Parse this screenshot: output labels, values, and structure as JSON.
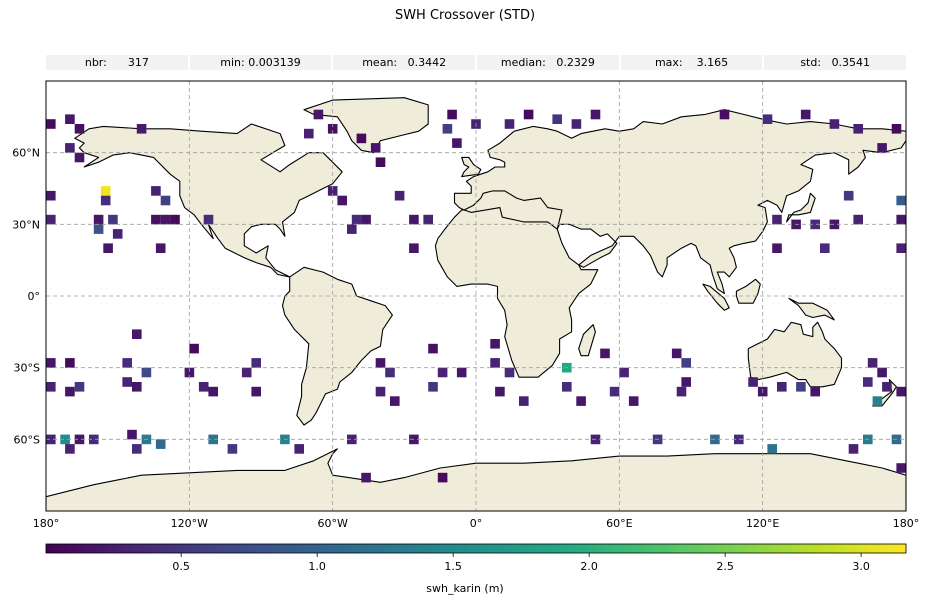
{
  "title": "SWH Crossover (STD)",
  "stats": [
    {
      "label": "nbr:",
      "value": "317"
    },
    {
      "label": "min:",
      "value": "0.003139"
    },
    {
      "label": "mean:",
      "value": "0.3442"
    },
    {
      "label": "median:",
      "value": "0.2329"
    },
    {
      "label": "max:",
      "value": "3.165"
    },
    {
      "label": "std:",
      "value": "0.3541"
    }
  ],
  "map": {
    "projection": "PlateCarree",
    "land_color": "#efedda",
    "coastline_color": "#000000",
    "gridlines": "dashed",
    "lon_ticks": [
      {
        "value": -180,
        "label": "180°"
      },
      {
        "value": -120,
        "label": "120°W"
      },
      {
        "value": -60,
        "label": "60°W"
      },
      {
        "value": 0,
        "label": "0°"
      },
      {
        "value": 60,
        "label": "60°E"
      },
      {
        "value": 120,
        "label": "120°E"
      },
      {
        "value": 180,
        "label": "180°"
      }
    ],
    "lat_ticks": [
      {
        "value": 60,
        "label": "60°N"
      },
      {
        "value": 30,
        "label": "30°N"
      },
      {
        "value": 0,
        "label": "0°"
      },
      {
        "value": -30,
        "label": "30°S"
      },
      {
        "value": -60,
        "label": "60°S"
      }
    ]
  },
  "colorbar": {
    "label": "swh_karin (m)",
    "colormap": "viridis",
    "min": 0.003139,
    "max": 3.165,
    "ticks": [
      {
        "value": 0.5,
        "label": "0.5"
      },
      {
        "value": 1.0,
        "label": "1.0"
      },
      {
        "value": 1.5,
        "label": "1.5"
      },
      {
        "value": 2.0,
        "label": "2.0"
      },
      {
        "value": 2.5,
        "label": "2.5"
      },
      {
        "value": 3.0,
        "label": "3.0"
      }
    ]
  },
  "chart_data": {
    "type": "heatmap",
    "cell_size_deg": 4,
    "cells_note": "lon, lat = cell centers (deg); v = SWH std (m)",
    "cells": [
      {
        "lon": -178,
        "lat": 72,
        "v": 0.1
      },
      {
        "lon": -170,
        "lat": 74,
        "v": 0.2
      },
      {
        "lon": -166,
        "lat": 70,
        "v": 0.15
      },
      {
        "lon": -170,
        "lat": 62,
        "v": 0.3
      },
      {
        "lon": -166,
        "lat": 58,
        "v": 0.2
      },
      {
        "lon": -140,
        "lat": 70,
        "v": 0.25
      },
      {
        "lon": -178,
        "lat": 42,
        "v": 0.2
      },
      {
        "lon": -178,
        "lat": 32,
        "v": 0.3
      },
      {
        "lon": -155,
        "lat": 44,
        "v": 3.1
      },
      {
        "lon": -155,
        "lat": 40,
        "v": 0.4
      },
      {
        "lon": -158,
        "lat": 32,
        "v": 0.2
      },
      {
        "lon": -152,
        "lat": 32,
        "v": 0.5
      },
      {
        "lon": -158,
        "lat": 28,
        "v": 0.8
      },
      {
        "lon": -150,
        "lat": 26,
        "v": 0.3
      },
      {
        "lon": -154,
        "lat": 20,
        "v": 0.2
      },
      {
        "lon": -134,
        "lat": 44,
        "v": 0.3
      },
      {
        "lon": -134,
        "lat": 32,
        "v": 0.15
      },
      {
        "lon": -130,
        "lat": 32,
        "v": 0.2
      },
      {
        "lon": -126,
        "lat": 32,
        "v": 0.1
      },
      {
        "lon": -130,
        "lat": 40,
        "v": 0.6
      },
      {
        "lon": -132,
        "lat": 20,
        "v": 0.2
      },
      {
        "lon": -112,
        "lat": 32,
        "v": 0.4
      },
      {
        "lon": -178,
        "lat": -28,
        "v": 0.2
      },
      {
        "lon": -178,
        "lat": -38,
        "v": 0.3
      },
      {
        "lon": -170,
        "lat": -28,
        "v": 0.1
      },
      {
        "lon": -170,
        "lat": -40,
        "v": 0.2
      },
      {
        "lon": -166,
        "lat": -38,
        "v": 0.5
      },
      {
        "lon": -142,
        "lat": -16,
        "v": 0.2
      },
      {
        "lon": -146,
        "lat": -28,
        "v": 0.4
      },
      {
        "lon": -146,
        "lat": -36,
        "v": 0.3
      },
      {
        "lon": -138,
        "lat": -32,
        "v": 0.7
      },
      {
        "lon": -142,
        "lat": -38,
        "v": 0.2
      },
      {
        "lon": -118,
        "lat": -22,
        "v": 0.1
      },
      {
        "lon": -120,
        "lat": -32,
        "v": 0.2
      },
      {
        "lon": -114,
        "lat": -38,
        "v": 0.3
      },
      {
        "lon": -110,
        "lat": -40,
        "v": 0.2
      },
      {
        "lon": -92,
        "lat": -28,
        "v": 0.4
      },
      {
        "lon": -96,
        "lat": -32,
        "v": 0.3
      },
      {
        "lon": -92,
        "lat": -40,
        "v": 0.2
      },
      {
        "lon": -178,
        "lat": -60,
        "v": 0.3
      },
      {
        "lon": -172,
        "lat": -60,
        "v": 1.5
      },
      {
        "lon": -166,
        "lat": -60,
        "v": 0.2
      },
      {
        "lon": -160,
        "lat": -60,
        "v": 0.4
      },
      {
        "lon": -170,
        "lat": -64,
        "v": 0.3
      },
      {
        "lon": -144,
        "lat": -58,
        "v": 0.2
      },
      {
        "lon": -138,
        "lat": -60,
        "v": 1.3
      },
      {
        "lon": -132,
        "lat": -62,
        "v": 1.1
      },
      {
        "lon": -142,
        "lat": -64,
        "v": 0.4
      },
      {
        "lon": -110,
        "lat": -60,
        "v": 1.2
      },
      {
        "lon": -102,
        "lat": -64,
        "v": 0.5
      },
      {
        "lon": -80,
        "lat": -60,
        "v": 1.4
      },
      {
        "lon": -74,
        "lat": -64,
        "v": 0.3
      },
      {
        "lon": -66,
        "lat": 76,
        "v": 0.2
      },
      {
        "lon": -70,
        "lat": 68,
        "v": 0.3
      },
      {
        "lon": -60,
        "lat": 70,
        "v": 0.15
      },
      {
        "lon": -48,
        "lat": 66,
        "v": 0.1
      },
      {
        "lon": -42,
        "lat": 62,
        "v": 0.2
      },
      {
        "lon": -40,
        "lat": 56,
        "v": 0.1
      },
      {
        "lon": -60,
        "lat": 44,
        "v": 0.3
      },
      {
        "lon": -56,
        "lat": 40,
        "v": 0.2
      },
      {
        "lon": -50,
        "lat": 32,
        "v": 0.4
      },
      {
        "lon": -52,
        "lat": 28,
        "v": 0.3
      },
      {
        "lon": -46,
        "lat": 32,
        "v": 0.2
      },
      {
        "lon": -32,
        "lat": 42,
        "v": 0.3
      },
      {
        "lon": -26,
        "lat": 32,
        "v": 0.2
      },
      {
        "lon": -20,
        "lat": 32,
        "v": 0.3
      },
      {
        "lon": -26,
        "lat": 20,
        "v": 0.2
      },
      {
        "lon": -12,
        "lat": 70,
        "v": 0.6
      },
      {
        "lon": -10,
        "lat": 76,
        "v": 0.1
      },
      {
        "lon": 0,
        "lat": 72,
        "v": 0.3
      },
      {
        "lon": -8,
        "lat": 64,
        "v": 0.2
      },
      {
        "lon": -40,
        "lat": -28,
        "v": 0.2
      },
      {
        "lon": -36,
        "lat": -32,
        "v": 0.4
      },
      {
        "lon": -40,
        "lat": -40,
        "v": 0.3
      },
      {
        "lon": -34,
        "lat": -44,
        "v": 0.2
      },
      {
        "lon": -18,
        "lat": -22,
        "v": 0.15
      },
      {
        "lon": -14,
        "lat": -32,
        "v": 0.3
      },
      {
        "lon": -6,
        "lat": -32,
        "v": 0.2
      },
      {
        "lon": -18,
        "lat": -38,
        "v": 0.5
      },
      {
        "lon": 8,
        "lat": -20,
        "v": 0.2
      },
      {
        "lon": 8,
        "lat": -28,
        "v": 0.3
      },
      {
        "lon": 14,
        "lat": -32,
        "v": 0.4
      },
      {
        "lon": 10,
        "lat": -40,
        "v": 0.2
      },
      {
        "lon": 20,
        "lat": -44,
        "v": 0.3
      },
      {
        "lon": 38,
        "lat": -30,
        "v": 1.9
      },
      {
        "lon": 38,
        "lat": -38,
        "v": 0.4
      },
      {
        "lon": 44,
        "lat": -44,
        "v": 0.2
      },
      {
        "lon": -52,
        "lat": -60,
        "v": 0.3
      },
      {
        "lon": -26,
        "lat": -60,
        "v": 0.2
      },
      {
        "lon": -14,
        "lat": -76,
        "v": 0.1
      },
      {
        "lon": -46,
        "lat": -76,
        "v": 0.2
      },
      {
        "lon": 14,
        "lat": 72,
        "v": 0.3
      },
      {
        "lon": 22,
        "lat": 76,
        "v": 0.1
      },
      {
        "lon": 34,
        "lat": 74,
        "v": 0.5
      },
      {
        "lon": 42,
        "lat": 72,
        "v": 0.3
      },
      {
        "lon": 50,
        "lat": 76,
        "v": 0.2
      },
      {
        "lon": 54,
        "lat": -24,
        "v": 0.2
      },
      {
        "lon": 62,
        "lat": -32,
        "v": 0.3
      },
      {
        "lon": 58,
        "lat": -40,
        "v": 0.4
      },
      {
        "lon": 66,
        "lat": -44,
        "v": 0.2
      },
      {
        "lon": 50,
        "lat": -60,
        "v": 0.3
      },
      {
        "lon": 76,
        "lat": -60,
        "v": 0.5
      },
      {
        "lon": 84,
        "lat": -24,
        "v": 0.2
      },
      {
        "lon": 88,
        "lat": -28,
        "v": 0.6
      },
      {
        "lon": 86,
        "lat": -40,
        "v": 0.3
      },
      {
        "lon": 88,
        "lat": -36,
        "v": 0.2
      },
      {
        "lon": 100,
        "lat": -60,
        "v": 1.1
      },
      {
        "lon": 110,
        "lat": -60,
        "v": 0.4
      },
      {
        "lon": 116,
        "lat": -36,
        "v": 0.3
      },
      {
        "lon": 120,
        "lat": -40,
        "v": 0.2
      },
      {
        "lon": 104,
        "lat": 76,
        "v": 0.15
      },
      {
        "lon": 138,
        "lat": 76,
        "v": 0.2
      },
      {
        "lon": 150,
        "lat": 72,
        "v": 0.3
      },
      {
        "lon": 122,
        "lat": 74,
        "v": 0.4
      },
      {
        "lon": 126,
        "lat": 32,
        "v": 0.3
      },
      {
        "lon": 134,
        "lat": 30,
        "v": 0.2
      },
      {
        "lon": 142,
        "lat": 30,
        "v": 0.4
      },
      {
        "lon": 150,
        "lat": 30,
        "v": 0.2
      },
      {
        "lon": 156,
        "lat": 42,
        "v": 0.5
      },
      {
        "lon": 160,
        "lat": 32,
        "v": 0.3
      },
      {
        "lon": 178,
        "lat": 40,
        "v": 0.9
      },
      {
        "lon": 178,
        "lat": 32,
        "v": 0.2
      },
      {
        "lon": 126,
        "lat": 20,
        "v": 0.2
      },
      {
        "lon": 146,
        "lat": 20,
        "v": 0.4
      },
      {
        "lon": 178,
        "lat": 20,
        "v": 0.3
      },
      {
        "lon": 176,
        "lat": 70,
        "v": 0.1
      },
      {
        "lon": 170,
        "lat": 62,
        "v": 0.2
      },
      {
        "lon": 160,
        "lat": 70,
        "v": 0.3
      },
      {
        "lon": 136,
        "lat": -38,
        "v": 0.6
      },
      {
        "lon": 128,
        "lat": -38,
        "v": 0.3
      },
      {
        "lon": 142,
        "lat": -40,
        "v": 0.2
      },
      {
        "lon": 166,
        "lat": -28,
        "v": 0.3
      },
      {
        "lon": 170,
        "lat": -32,
        "v": 0.2
      },
      {
        "lon": 164,
        "lat": -36,
        "v": 0.4
      },
      {
        "lon": 172,
        "lat": -38,
        "v": 0.3
      },
      {
        "lon": 168,
        "lat": -44,
        "v": 1.4
      },
      {
        "lon": 178,
        "lat": -40,
        "v": 0.2
      },
      {
        "lon": 164,
        "lat": -60,
        "v": 1.3
      },
      {
        "lon": 176,
        "lat": -60,
        "v": 1.1
      },
      {
        "lon": 158,
        "lat": -64,
        "v": 0.3
      },
      {
        "lon": 178,
        "lat": -72,
        "v": 0.2
      },
      {
        "lon": 124,
        "lat": -64,
        "v": 1.2
      }
    ]
  }
}
